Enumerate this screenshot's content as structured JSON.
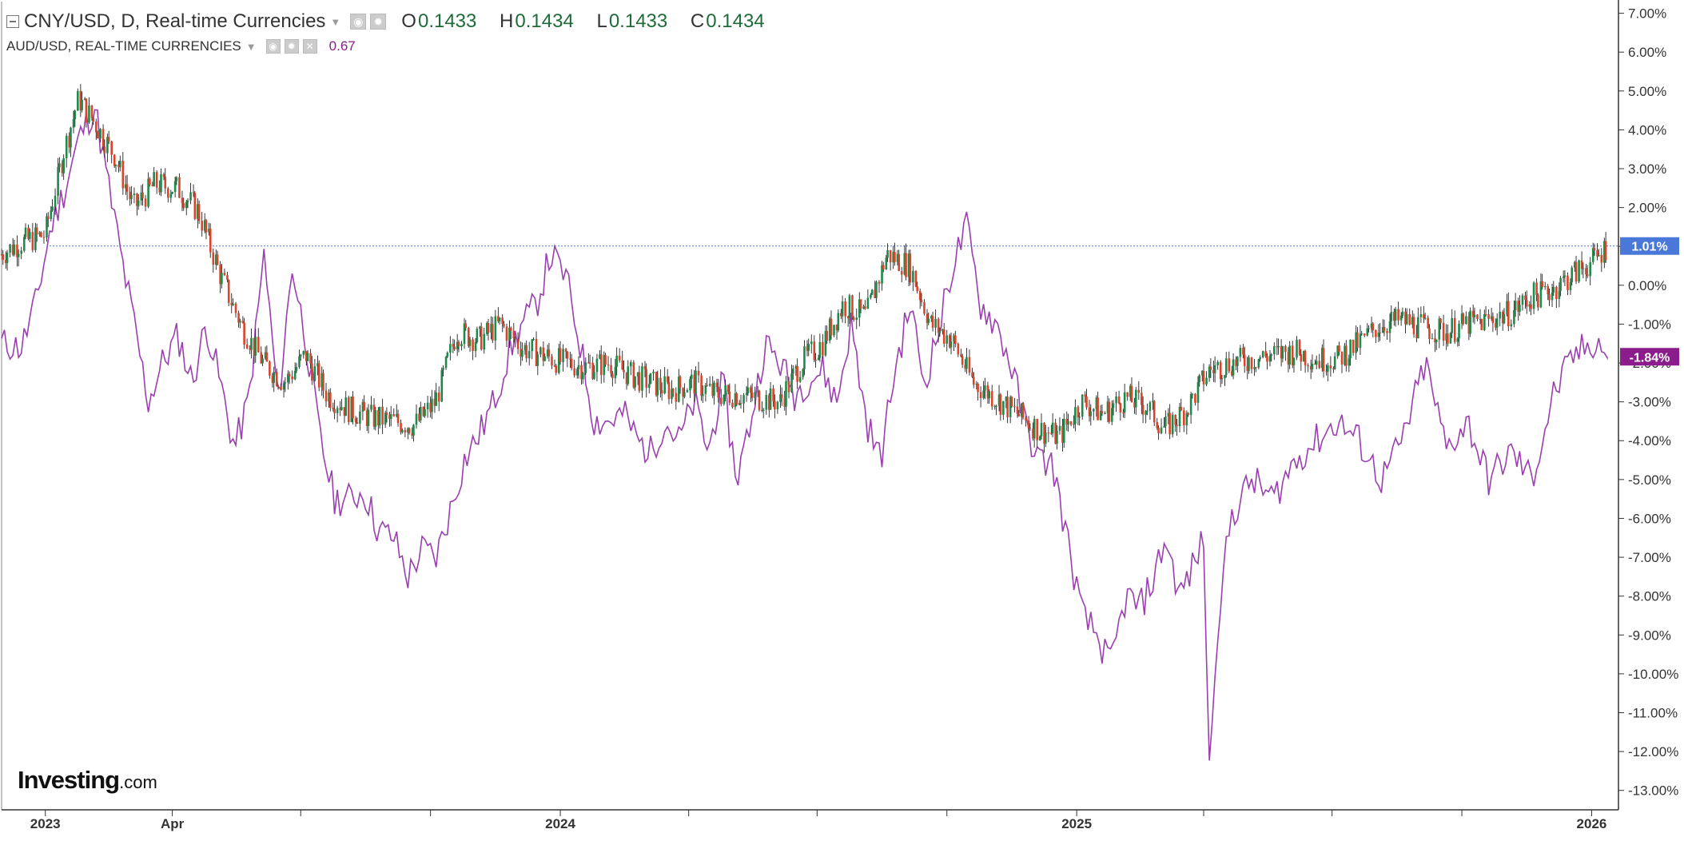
{
  "header": {
    "title": "CNY/USD, D, Real-time Currencies",
    "ohlc": [
      {
        "key": "O",
        "value": "0.1433"
      },
      {
        "key": "H",
        "value": "0.1434"
      },
      {
        "key": "L",
        "value": "0.1433"
      },
      {
        "key": "C",
        "value": "0.1434"
      }
    ],
    "overlay_title": "AUD/USD, REAL-TIME CURRENCIES",
    "overlay_value": "0.67"
  },
  "logo": {
    "brand": "Investing",
    "suffix": ".com"
  },
  "colors": {
    "up": "#1f8a4c",
    "down": "#d9452b",
    "overlay": "#9b3fb0",
    "current_line": "#4a78d9",
    "cny_badge": "#4a78d9",
    "aud_badge": "#8b1c8b",
    "grid": "#e6e6e6",
    "axis": "#333333"
  },
  "chart_data": {
    "type": "line",
    "y_axis": {
      "unit": "%",
      "range": [
        -13.5,
        7.3
      ],
      "ticks": [
        "7.00%",
        "6.00%",
        "5.00%",
        "4.00%",
        "3.00%",
        "2.00%",
        "1.00%",
        "0.00%",
        "-1.00%",
        "-2.00%",
        "-3.00%",
        "-4.00%",
        "-5.00%",
        "-6.00%",
        "-7.00%",
        "-8.00%",
        "-9.00%",
        "-10.00%",
        "-11.00%",
        "-12.00%",
        "-13.00%"
      ]
    },
    "x_axis": {
      "range": [
        "2022-12-01",
        "2026-01-20"
      ],
      "tick_labels": [
        {
          "date": "2023-01-01",
          "label": "2023"
        },
        {
          "date": "2023-04-01",
          "label": "Apr"
        },
        {
          "date": "2024-01-01",
          "label": "2024"
        },
        {
          "date": "2025-01-01",
          "label": "2025"
        },
        {
          "date": "2026-01-01",
          "label": "2026"
        }
      ],
      "minor_ticks": [
        "2023-07-01",
        "2023-10-01",
        "2024-04-01",
        "2024-07-01",
        "2024-10-01",
        "2025-04-01",
        "2025-07-01",
        "2025-10-01"
      ]
    },
    "series": [
      {
        "name": "CNY/USD",
        "style": "candlestick",
        "last_label": "1.01%",
        "x": [
          "2022-12-01",
          "2022-12-15",
          "2023-01-01",
          "2023-01-15",
          "2023-01-25",
          "2023-02-05",
          "2023-02-20",
          "2023-03-05",
          "2023-03-20",
          "2023-04-05",
          "2023-04-20",
          "2023-05-05",
          "2023-05-20",
          "2023-06-05",
          "2023-06-20",
          "2023-07-05",
          "2023-07-20",
          "2023-08-05",
          "2023-08-20",
          "2023-09-05",
          "2023-09-20",
          "2023-10-05",
          "2023-10-20",
          "2023-11-05",
          "2023-11-20",
          "2023-12-05",
          "2023-12-20",
          "2024-01-05",
          "2024-01-20",
          "2024-02-05",
          "2024-02-20",
          "2024-03-05",
          "2024-03-20",
          "2024-04-05",
          "2024-04-20",
          "2024-05-05",
          "2024-05-20",
          "2024-06-05",
          "2024-06-20",
          "2024-07-05",
          "2024-07-20",
          "2024-08-05",
          "2024-08-20",
          "2024-09-05",
          "2024-09-20",
          "2024-10-05",
          "2024-10-20",
          "2024-11-05",
          "2024-11-20",
          "2024-12-05",
          "2024-12-20",
          "2025-01-05",
          "2025-01-20",
          "2025-02-05",
          "2025-02-20",
          "2025-03-05",
          "2025-03-20",
          "2025-04-05",
          "2025-04-20",
          "2025-05-05",
          "2025-05-20",
          "2025-06-05",
          "2025-06-20",
          "2025-07-05",
          "2025-07-20",
          "2025-08-05",
          "2025-08-20",
          "2025-09-05",
          "2025-09-20",
          "2025-10-05",
          "2025-10-20",
          "2025-11-05",
          "2025-11-20",
          "2025-12-05",
          "2025-12-20",
          "2026-01-05",
          "2026-01-12"
        ],
        "values": [
          0.8,
          1.1,
          1.3,
          3.5,
          4.8,
          4.2,
          3.3,
          2.0,
          2.6,
          2.5,
          1.9,
          0.3,
          -1.0,
          -2.0,
          -2.5,
          -1.8,
          -2.8,
          -3.2,
          -3.4,
          -3.5,
          -3.6,
          -3.0,
          -1.2,
          -1.4,
          -1.0,
          -1.6,
          -1.8,
          -2.0,
          -2.1,
          -2.0,
          -2.3,
          -2.5,
          -2.7,
          -2.5,
          -2.8,
          -2.8,
          -2.9,
          -3.0,
          -2.0,
          -1.5,
          -0.5,
          -0.8,
          0.8,
          0.5,
          -1.0,
          -1.4,
          -2.5,
          -2.9,
          -3.3,
          -3.7,
          -3.9,
          -3.0,
          -3.3,
          -2.9,
          -3.1,
          -3.7,
          -3.2,
          -2.2,
          -2.0,
          -1.9,
          -1.8,
          -1.7,
          -1.9,
          -1.9,
          -1.5,
          -1.0,
          -0.9,
          -1.1,
          -1.2,
          -1.0,
          -0.9,
          -0.7,
          -0.3,
          -0.1,
          0.3,
          0.7,
          1.01
        ]
      },
      {
        "name": "AUD/USD",
        "style": "line",
        "last_label": "-1.84%",
        "x": [
          "2022-12-01",
          "2022-12-15",
          "2022-12-25",
          "2023-01-05",
          "2023-01-15",
          "2023-01-25",
          "2023-02-05",
          "2023-02-15",
          "2023-02-25",
          "2023-03-05",
          "2023-03-15",
          "2023-03-25",
          "2023-04-05",
          "2023-04-15",
          "2023-04-25",
          "2023-05-05",
          "2023-05-15",
          "2023-05-25",
          "2023-06-05",
          "2023-06-15",
          "2023-06-25",
          "2023-07-05",
          "2023-07-15",
          "2023-07-25",
          "2023-08-05",
          "2023-08-15",
          "2023-08-25",
          "2023-09-05",
          "2023-09-15",
          "2023-09-25",
          "2023-10-05",
          "2023-10-15",
          "2023-10-25",
          "2023-11-05",
          "2023-11-15",
          "2023-11-25",
          "2023-12-05",
          "2023-12-15",
          "2023-12-25",
          "2024-01-05",
          "2024-01-15",
          "2024-01-25",
          "2024-02-05",
          "2024-02-15",
          "2024-02-25",
          "2024-03-05",
          "2024-03-15",
          "2024-03-25",
          "2024-04-05",
          "2024-04-15",
          "2024-04-25",
          "2024-05-05",
          "2024-05-15",
          "2024-05-25",
          "2024-06-05",
          "2024-06-15",
          "2024-06-25",
          "2024-07-05",
          "2024-07-15",
          "2024-07-25",
          "2024-08-05",
          "2024-08-15",
          "2024-08-25",
          "2024-09-05",
          "2024-09-15",
          "2024-09-25",
          "2024-10-05",
          "2024-10-15",
          "2024-10-25",
          "2024-11-05",
          "2024-11-15",
          "2024-11-25",
          "2024-12-05",
          "2024-12-15",
          "2024-12-25",
          "2025-01-05",
          "2025-01-15",
          "2025-01-25",
          "2025-02-05",
          "2025-02-15",
          "2025-02-25",
          "2025-03-05",
          "2025-03-15",
          "2025-03-25",
          "2025-04-01",
          "2025-04-05",
          "2025-04-10",
          "2025-04-20",
          "2025-05-05",
          "2025-05-20",
          "2025-06-05",
          "2025-06-20",
          "2025-07-05",
          "2025-07-20",
          "2025-08-05",
          "2025-08-20",
          "2025-09-05",
          "2025-09-20",
          "2025-10-05",
          "2025-10-20",
          "2025-11-05",
          "2025-11-20",
          "2025-12-05",
          "2025-12-20",
          "2026-01-05",
          "2026-01-12"
        ],
        "values": [
          -1.5,
          -1.6,
          -0.5,
          1.5,
          2.5,
          3.8,
          4.6,
          2.5,
          0.5,
          -1.0,
          -3.0,
          -2.0,
          -1.3,
          -2.5,
          -1.0,
          -2.5,
          -4.2,
          -3.0,
          0.8,
          -3.0,
          0.5,
          -1.5,
          -4.0,
          -5.5,
          -5.5,
          -5.3,
          -6.3,
          -6.5,
          -7.5,
          -6.8,
          -7.0,
          -5.8,
          -4.5,
          -3.8,
          -3.0,
          -1.8,
          -1.0,
          -0.5,
          0.8,
          0.2,
          -1.5,
          -3.5,
          -3.5,
          -3.3,
          -4.0,
          -4.3,
          -3.5,
          -4.0,
          -3.0,
          -4.3,
          -2.5,
          -5.0,
          -3.5,
          -1.5,
          -2.0,
          -2.8,
          -2.4,
          -2.2,
          -3.0,
          -1.0,
          -3.5,
          -4.5,
          -2.2,
          -0.5,
          -2.5,
          -1.2,
          0.5,
          1.5,
          -0.5,
          -1.0,
          -2.0,
          -3.5,
          -4.5,
          -4.6,
          -6.5,
          -8.5,
          -9.0,
          -9.8,
          -8.0,
          -8.3,
          -7.5,
          -6.5,
          -8.0,
          -7.2,
          -6.5,
          -12.5,
          -9.0,
          -6.0,
          -5.0,
          -5.5,
          -4.5,
          -4.0,
          -3.5,
          -4.0,
          -5.0,
          -4.0,
          -2.0,
          -4.2,
          -3.5,
          -5.0,
          -4.3,
          -5.0,
          -2.8,
          -1.8,
          -1.4,
          -1.84
        ]
      }
    ]
  }
}
